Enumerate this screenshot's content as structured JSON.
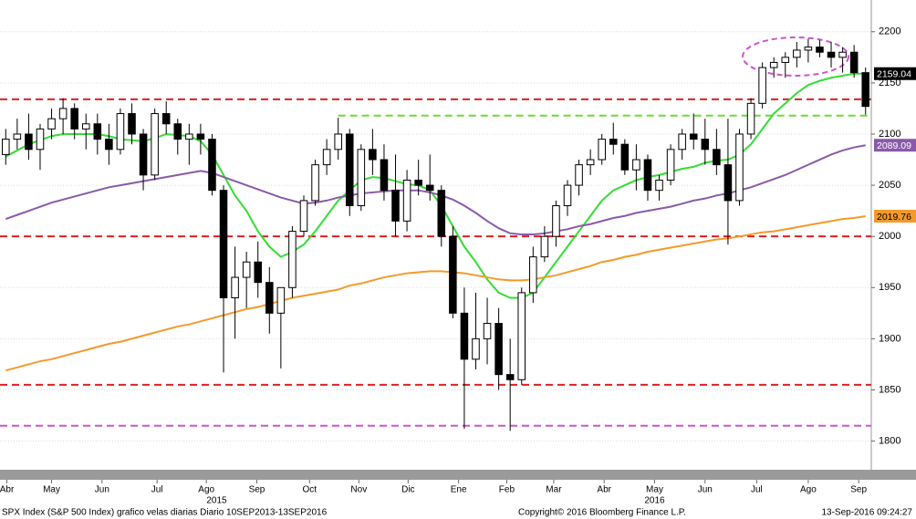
{
  "chart_data": {
    "type": "candlestick",
    "xlim": [
      0,
      76
    ],
    "ylim": [
      1772,
      2231
    ],
    "yticks": [
      1800,
      1850,
      1900,
      1950,
      2000,
      2050,
      2100,
      2150,
      2200
    ],
    "xticks": [
      {
        "value": 0.6,
        "label": "Abr"
      },
      {
        "value": 4.5,
        "label": "May"
      },
      {
        "value": 8.9,
        "label": "Jun"
      },
      {
        "value": 13.7,
        "label": "Jul"
      },
      {
        "value": 18,
        "label": "Ago"
      },
      {
        "value": 22.4,
        "label": "Sep"
      },
      {
        "value": 27,
        "label": "Oct"
      },
      {
        "value": 31.3,
        "label": "Nov"
      },
      {
        "value": 35.6,
        "label": "Dic"
      },
      {
        "value": 40,
        "label": "Ene"
      },
      {
        "value": 44.2,
        "label": "Feb"
      },
      {
        "value": 48.3,
        "label": "Mar"
      },
      {
        "value": 52.7,
        "label": "Abr"
      },
      {
        "value": 57.1,
        "label": "May"
      },
      {
        "value": 61.5,
        "label": "Jun"
      },
      {
        "value": 66,
        "label": "Jul"
      },
      {
        "value": 70.5,
        "label": "Ago"
      },
      {
        "value": 74.9,
        "label": "Sep"
      }
    ],
    "year_labels": [
      {
        "value": 18.9,
        "label": "2015"
      },
      {
        "value": 57.1,
        "label": "2016"
      }
    ],
    "grid": true,
    "candles": {
      "up_color": "#ffffff",
      "down_color": "#000000",
      "open": [
        2080,
        2095,
        2100,
        2085,
        2105,
        2115,
        2125,
        2105,
        2110,
        2095,
        2085,
        2120,
        2100,
        2060,
        2120,
        2110,
        2095,
        2100,
        2095,
        2045,
        1940,
        1960,
        1975,
        1955,
        1925,
        1950,
        2005,
        2035,
        2070,
        2085,
        2100,
        2030,
        2085,
        2075,
        2045,
        2015,
        2055,
        2050,
        2045,
        2000,
        1925,
        1880,
        1900,
        1915,
        1865,
        1860,
        1945,
        1980,
        2000,
        2030,
        2050,
        2070,
        2075,
        2095,
        2090,
        2065,
        2075,
        2045,
        2055,
        2085,
        2100,
        2095,
        2085,
        2070,
        2035,
        2100,
        2130,
        2165,
        2170,
        2175,
        2182,
        2185,
        2180,
        2175,
        2180,
        2160
      ],
      "high": [
        2105,
        2115,
        2120,
        2110,
        2125,
        2135,
        2130,
        2120,
        2120,
        2110,
        2125,
        2130,
        2105,
        2125,
        2132,
        2115,
        2110,
        2110,
        2100,
        2050,
        1990,
        1985,
        1995,
        1970,
        1950,
        2010,
        2040,
        2075,
        2095,
        2116,
        2105,
        2090,
        2105,
        2090,
        2080,
        2065,
        2075,
        2080,
        2050,
        2010,
        1950,
        1945,
        1940,
        1930,
        1900,
        1950,
        1990,
        2010,
        2035,
        2055,
        2075,
        2085,
        2100,
        2111,
        2095,
        2090,
        2080,
        2060,
        2090,
        2105,
        2120,
        2115,
        2105,
        2115,
        2105,
        2135,
        2170,
        2175,
        2180,
        2190,
        2193,
        2192,
        2190,
        2185,
        2187,
        2165
      ],
      "low": [
        2070,
        2085,
        2075,
        2065,
        2095,
        2100,
        2095,
        2085,
        2080,
        2070,
        2080,
        2090,
        2045,
        2055,
        2100,
        2080,
        2070,
        2080,
        2040,
        1867,
        1900,
        1930,
        1940,
        1905,
        1871,
        1940,
        2000,
        2030,
        2060,
        2075,
        2020,
        2025,
        2060,
        2035,
        2000,
        2005,
        2040,
        2035,
        1990,
        1920,
        1812,
        1870,
        1875,
        1850,
        1810,
        1855,
        1935,
        1975,
        1990,
        2020,
        2040,
        2060,
        2070,
        2080,
        2060,
        2045,
        2035,
        2035,
        2050,
        2075,
        2085,
        2070,
        2060,
        1992,
        2030,
        2095,
        2125,
        2155,
        2155,
        2165,
        2170,
        2175,
        2165,
        2160,
        2155,
        2119
      ],
      "close": [
        2095,
        2100,
        2085,
        2105,
        2115,
        2125,
        2105,
        2110,
        2095,
        2085,
        2120,
        2100,
        2060,
        2120,
        2110,
        2095,
        2100,
        2095,
        2045,
        1940,
        1960,
        1975,
        1955,
        1925,
        1950,
        2005,
        2035,
        2070,
        2085,
        2100,
        2030,
        2085,
        2075,
        2045,
        2015,
        2055,
        2050,
        2045,
        2000,
        1925,
        1880,
        1900,
        1915,
        1865,
        1860,
        1945,
        1980,
        2000,
        2030,
        2050,
        2070,
        2075,
        2095,
        2090,
        2065,
        2075,
        2045,
        2055,
        2085,
        2100,
        2095,
        2085,
        2070,
        2035,
        2100,
        2130,
        2165,
        2170,
        2175,
        2182,
        2185,
        2180,
        2175,
        2180,
        2160,
        2127
      ]
    },
    "series": [
      {
        "color": "#33dd33",
        "label_bg": "#000000",
        "label_fg": "#ffffff",
        "values": [
          2078,
          2084,
          2090,
          2094,
          2098,
          2100,
          2100,
          2100,
          2100,
          2098,
          2095,
          2094,
          2093,
          2096,
          2100,
          2099,
          2098,
          2093,
          2080,
          2060,
          2040,
          2025,
          2005,
          1990,
          1980,
          1985,
          1992,
          2005,
          2020,
          2035,
          2045,
          2055,
          2058,
          2057,
          2054,
          2051,
          2050,
          2045,
          2030,
          2010,
          1990,
          1975,
          1958,
          1945,
          1940,
          1940,
          1945,
          1960,
          1975,
          1990,
          2005,
          2020,
          2035,
          2045,
          2050,
          2055,
          2058,
          2060,
          2063,
          2066,
          2068,
          2072,
          2074,
          2075,
          2080,
          2090,
          2105,
          2120,
          2130,
          2140,
          2148,
          2152,
          2155,
          2157,
          2159,
          2159.04
        ]
      },
      {
        "color": "#8a5aa8",
        "label_bg": "#8a5aa8",
        "label_fg": "#ffffff",
        "values": [
          2017,
          2021,
          2025,
          2029,
          2033,
          2036,
          2039,
          2042,
          2045,
          2048,
          2050,
          2052,
          2054,
          2056,
          2058,
          2060,
          2062,
          2064,
          2062,
          2058,
          2054,
          2050,
          2046,
          2042,
          2038,
          2035,
          2032,
          2033,
          2035,
          2038,
          2040,
          2042,
          2043,
          2044,
          2045,
          2045,
          2045,
          2043,
          2040,
          2036,
          2030,
          2023,
          2015,
          2008,
          2003,
          2002,
          2002,
          2003,
          2005,
          2007,
          2010,
          2012,
          2015,
          2018,
          2020,
          2023,
          2025,
          2027,
          2029,
          2032,
          2035,
          2037,
          2040,
          2042,
          2045,
          2048,
          2052,
          2056,
          2060,
          2065,
          2070,
          2075,
          2080,
          2084,
          2087,
          2089.09
        ]
      },
      {
        "color": "#f39a2a",
        "label_bg": "#f39a2a",
        "label_fg": "#000000",
        "values": [
          1869,
          1872,
          1875,
          1878,
          1880,
          1883,
          1886,
          1889,
          1892,
          1895,
          1897,
          1900,
          1903,
          1906,
          1909,
          1912,
          1914,
          1917,
          1920,
          1923,
          1926,
          1929,
          1931,
          1934,
          1937,
          1940,
          1942,
          1944,
          1946,
          1948,
          1952,
          1954,
          1957,
          1960,
          1962,
          1964,
          1965,
          1966,
          1966,
          1965,
          1964,
          1962,
          1960,
          1958,
          1957,
          1957,
          1958,
          1960,
          1962,
          1965,
          1968,
          1971,
          1975,
          1977,
          1980,
          1982,
          1985,
          1987,
          1989,
          1991,
          1993,
          1995,
          1997,
          1998,
          2000,
          2002,
          2004,
          2005,
          2007,
          2009,
          2011,
          2013,
          2015,
          2017,
          2018,
          2019.76
        ]
      }
    ],
    "levels": [
      {
        "value": 2134,
        "color": "#e02020",
        "from": 0
      },
      {
        "value": 2118,
        "color": "#66dd33",
        "from": 29.5
      },
      {
        "value": 2000,
        "color": "#e02020",
        "from": 0
      },
      {
        "value": 1855,
        "color": "#e02020",
        "from": 0
      },
      {
        "value": 1815,
        "color": "#cc55cc",
        "from": 0
      }
    ],
    "footer": {
      "source": "SPX Index (S&P 500 Index) grafico velas diarias  Diario 10SEP2013-13SEP2016",
      "copyright": "Copyright© 2016 Bloomberg Finance L.P.",
      "timestamp": "13-Sep-2016 09:24:27"
    }
  }
}
